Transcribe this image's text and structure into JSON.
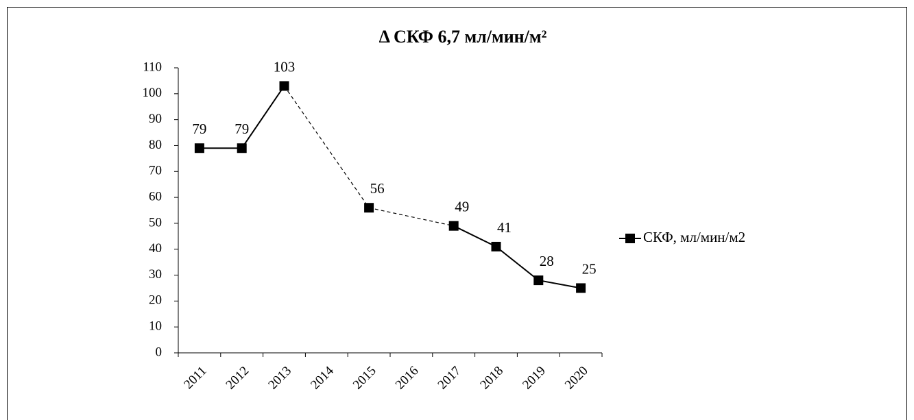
{
  "chart_data": {
    "type": "line",
    "title": "Δ СКФ 6,7 мл/мин/м²",
    "categories": [
      "2011",
      "2012",
      "2013",
      "2014",
      "2015",
      "2016",
      "2017",
      "2018",
      "2019",
      "2020"
    ],
    "series": [
      {
        "name": "СКФ, мл/мин/м2",
        "color": "#000000",
        "marker": "square",
        "values": [
          79,
          79,
          103,
          null,
          56,
          null,
          49,
          41,
          28,
          25
        ]
      }
    ],
    "connect_gaps": "dashed",
    "ylim": [
      0,
      110
    ],
    "yticks": [
      0,
      10,
      20,
      30,
      40,
      50,
      60,
      70,
      80,
      90,
      100,
      110
    ],
    "grid": false,
    "legend": "right",
    "data_labels": true
  }
}
